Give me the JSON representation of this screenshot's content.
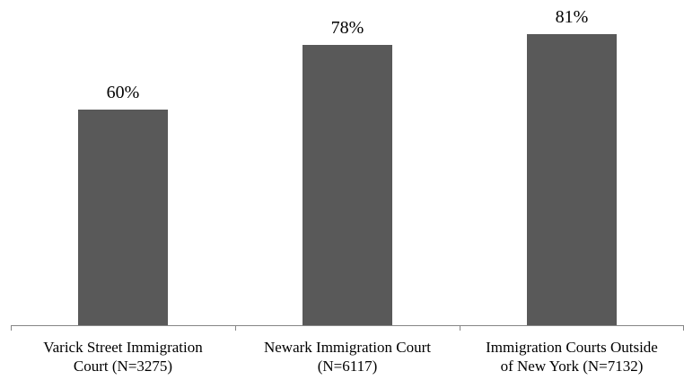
{
  "chart_data": {
    "type": "bar",
    "categories": [
      [
        "Varick Street Immigration",
        "Court (N=3275)"
      ],
      [
        "Newark Immigration Court",
        "(N=6117)"
      ],
      [
        "Immigration Courts Outside",
        "of New York (N=7132)"
      ]
    ],
    "values": [
      60,
      78,
      81
    ],
    "data_labels": [
      "60%",
      "78%",
      "81%"
    ],
    "title": "",
    "xlabel": "",
    "ylabel": "",
    "ylim": [
      0,
      100
    ],
    "grid": false,
    "legend": "none",
    "bar_color": "#595959",
    "axis_color": "#868686"
  }
}
